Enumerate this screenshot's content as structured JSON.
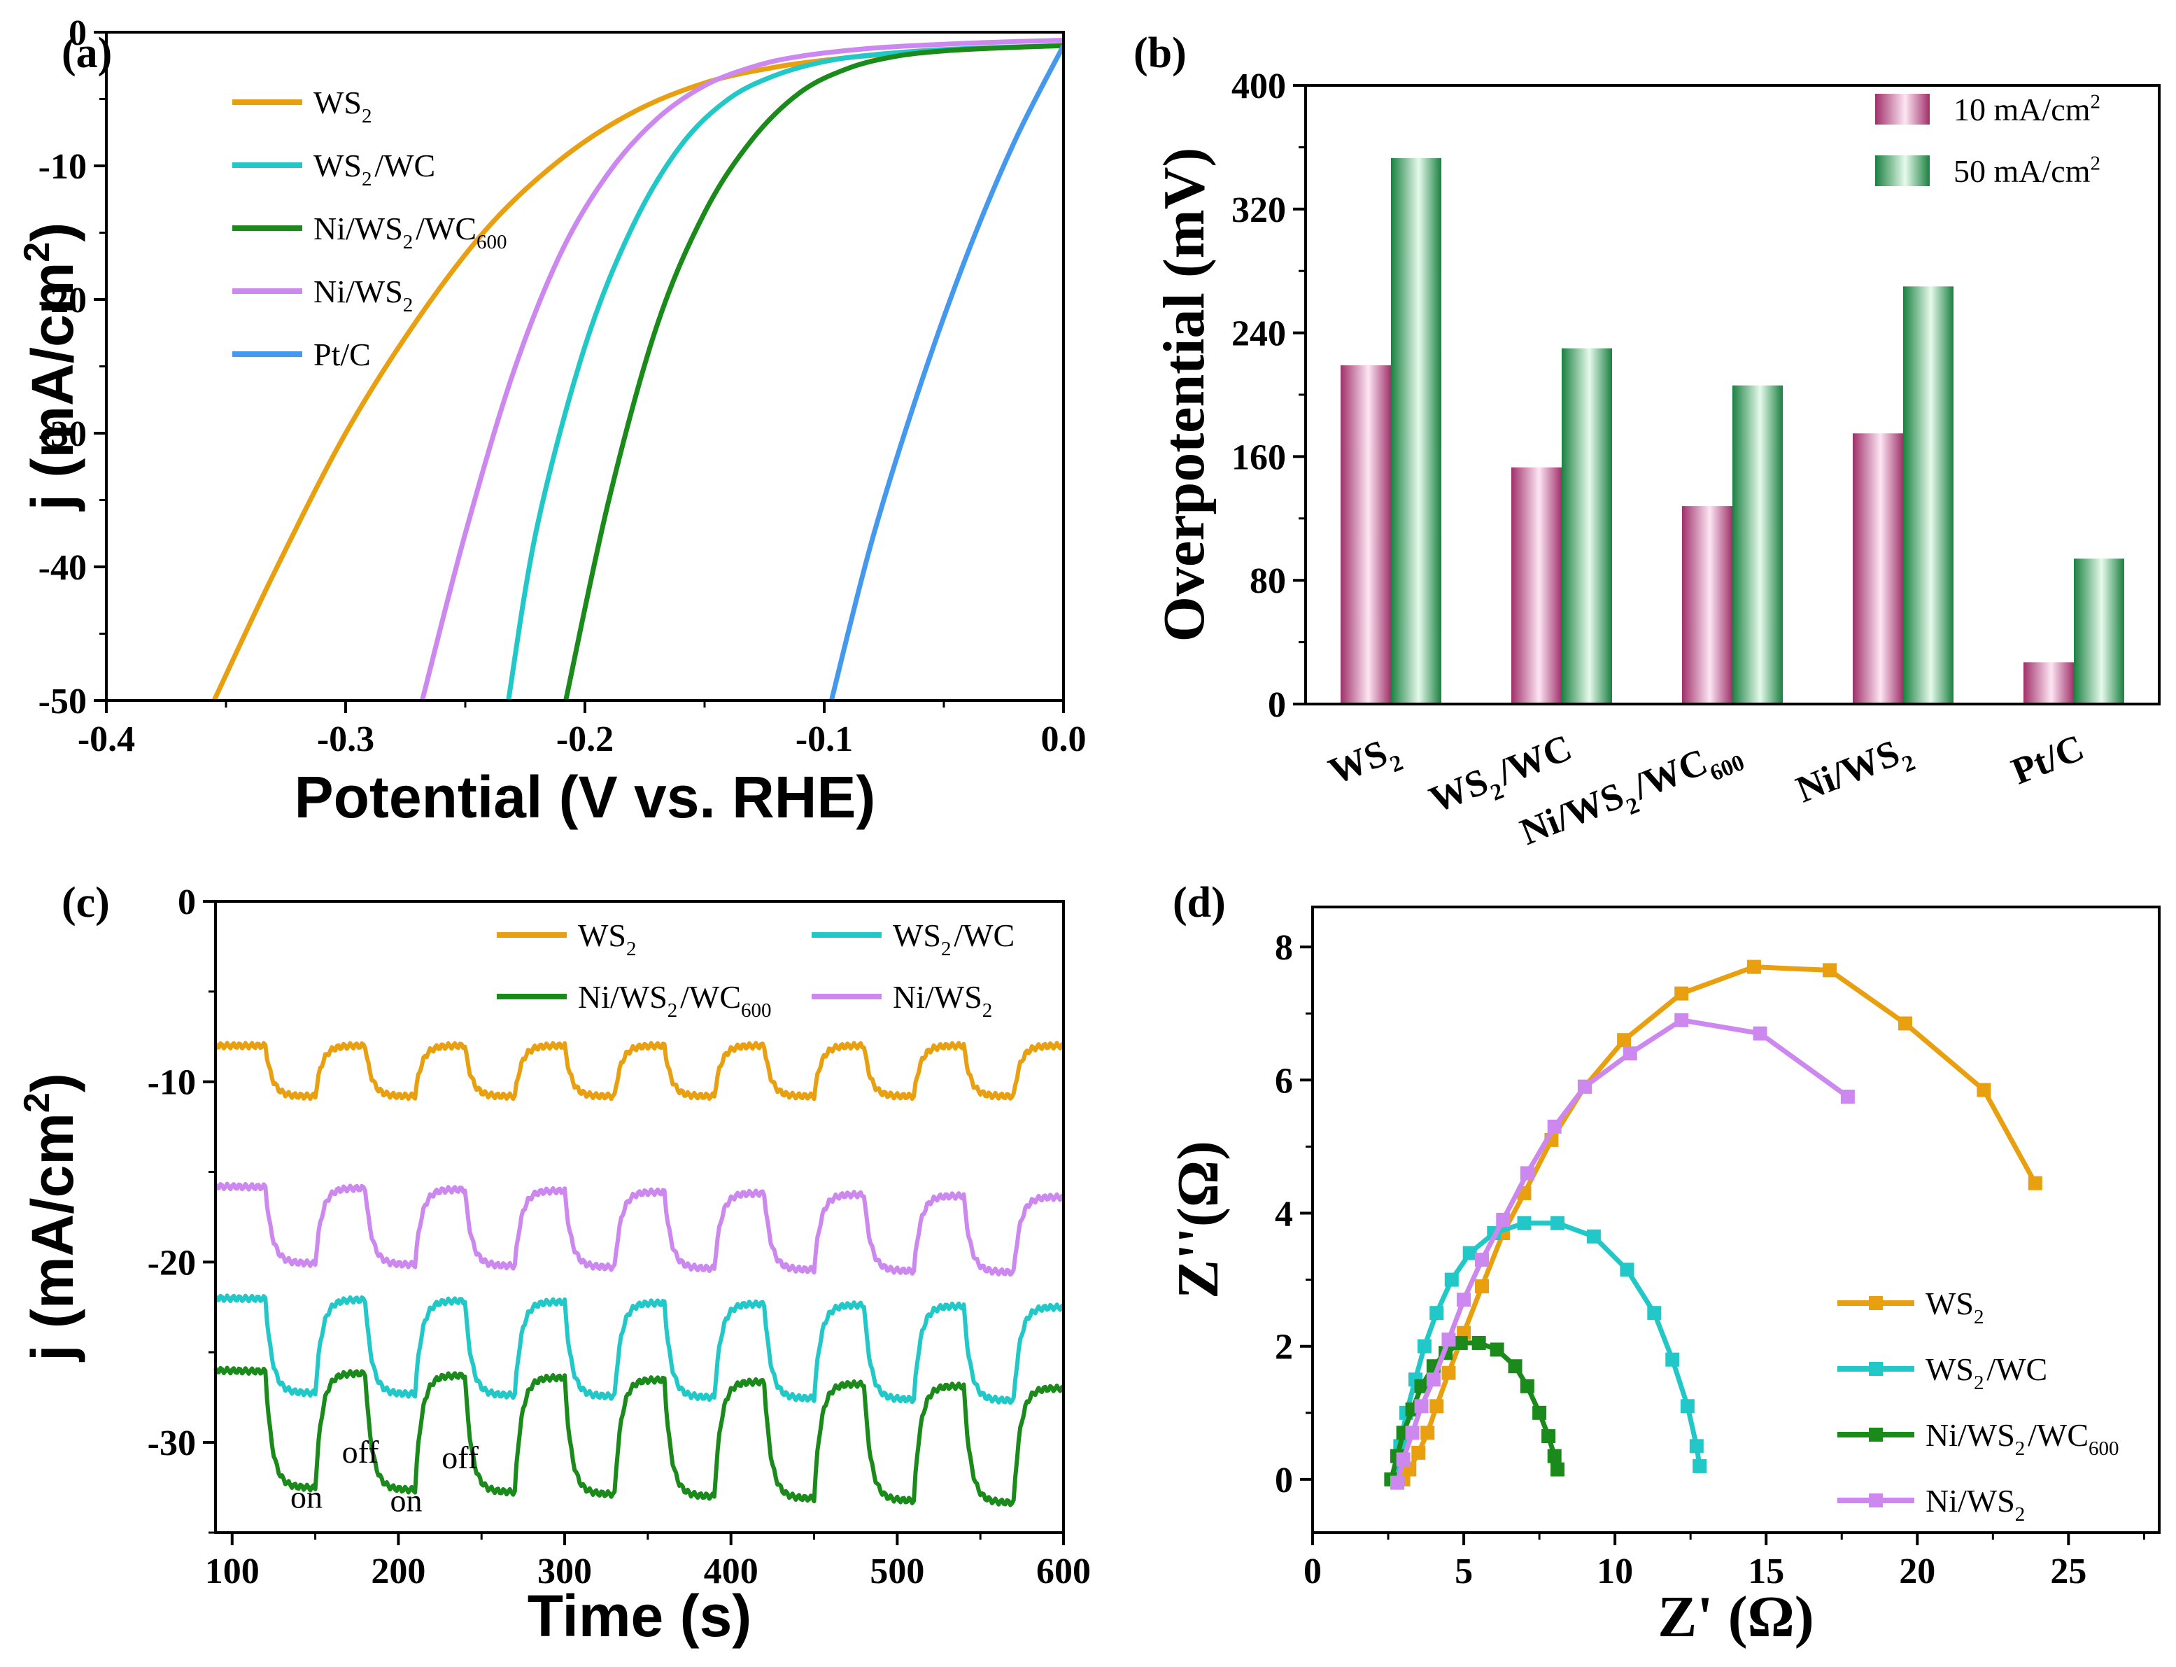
{
  "chart_data": [
    {
      "panel": "(a)",
      "type": "line",
      "xlabel": "Potential (V vs. RHE)",
      "ylabel": "j (mA/cm",
      "ylabel_sup": "2",
      "ylabel_end": ")",
      "xlim": [
        -0.4,
        0.0
      ],
      "ylim": [
        -50,
        0
      ],
      "xticks": [
        -0.4,
        -0.3,
        -0.2,
        -0.1,
        0.0
      ],
      "xtick_labels": [
        "-0.4",
        "-0.3",
        "-0.2",
        "-0.1",
        "0.0"
      ],
      "yticks": [
        0,
        -10,
        -20,
        -30,
        -40,
        -50
      ],
      "ytick_labels": [
        "0",
        "-10",
        "-20",
        "-30",
        "-40",
        "-50"
      ],
      "legend": [
        {
          "base": "WS",
          "sub": "2",
          "tail": "",
          "color": "#E8A010"
        },
        {
          "base": "WS",
          "sub": "2",
          "tail": "/WC",
          "color": "#22C8C8"
        },
        {
          "base": "Ni/WS",
          "sub": "2",
          "tail": "/WC",
          "sub2": "600",
          "color": "#1A8A1A"
        },
        {
          "base": "Ni/WS",
          "sub": "2",
          "tail": "",
          "color": "#CC88EE"
        },
        {
          "base": "Pt/C",
          "sub": "",
          "tail": "",
          "color": "#4499EE"
        }
      ],
      "series": [
        {
          "name": "WS2",
          "color": "#E8A010",
          "x": [
            -0.355,
            -0.33,
            -0.3,
            -0.27,
            -0.24,
            -0.21,
            -0.18,
            -0.15,
            -0.12,
            -0.09,
            -0.06,
            -0.03,
            0.0
          ],
          "y": [
            -50,
            -40.5,
            -30.0,
            -21.5,
            -14.5,
            -9.5,
            -6.0,
            -3.8,
            -2.6,
            -1.9,
            -1.5,
            -1.2,
            -1.0
          ]
        },
        {
          "name": "WS2/WC",
          "color": "#22C8C8",
          "x": [
            -0.232,
            -0.22,
            -0.2,
            -0.18,
            -0.16,
            -0.14,
            -0.12,
            -0.1,
            -0.08,
            -0.05,
            -0.02,
            0.0
          ],
          "y": [
            -50,
            -37.0,
            -23.5,
            -14.5,
            -8.5,
            -5.0,
            -3.2,
            -2.2,
            -1.7,
            -1.3,
            -1.1,
            -1.0
          ]
        },
        {
          "name": "Ni/WS2/WC600",
          "color": "#1A8A1A",
          "x": [
            -0.208,
            -0.19,
            -0.17,
            -0.15,
            -0.13,
            -0.11,
            -0.09,
            -0.07,
            -0.05,
            -0.03,
            0.0
          ],
          "y": [
            -50,
            -35.0,
            -22.0,
            -13.5,
            -8.0,
            -4.5,
            -2.7,
            -1.8,
            -1.4,
            -1.2,
            -1.0
          ]
        },
        {
          "name": "Ni/WS2",
          "color": "#CC88EE",
          "x": [
            -0.268,
            -0.25,
            -0.23,
            -0.21,
            -0.19,
            -0.17,
            -0.15,
            -0.13,
            -0.11,
            -0.08,
            -0.05,
            -0.02,
            0.0
          ],
          "y": [
            -50,
            -37.5,
            -25.5,
            -16.5,
            -10.5,
            -6.5,
            -4.0,
            -2.6,
            -1.8,
            -1.2,
            -0.9,
            -0.7,
            -0.6
          ]
        },
        {
          "name": "Pt/C",
          "color": "#4499EE",
          "x": [
            -0.097,
            -0.08,
            -0.06,
            -0.04,
            -0.02,
            0.0
          ],
          "y": [
            -50,
            -38.0,
            -26.5,
            -16.5,
            -8.0,
            -1.0
          ]
        }
      ]
    },
    {
      "panel": "(b)",
      "type": "bar",
      "ylabel": "Overpotential (mV)",
      "ylim": [
        0,
        400
      ],
      "yticks": [
        0,
        80,
        160,
        240,
        320,
        400
      ],
      "ytick_labels": [
        "0",
        "80",
        "160",
        "240",
        "320",
        "400"
      ],
      "categories": [
        {
          "base": "WS",
          "sub": "2",
          "tail": ""
        },
        {
          "base": "WS",
          "sub": "2",
          "tail": "/WC"
        },
        {
          "base": "Ni/WS",
          "sub": "2",
          "tail": "/WC",
          "sub2": "600"
        },
        {
          "base": "Ni/WS",
          "sub": "2",
          "tail": ""
        },
        {
          "base": "Pt/C",
          "sub": "",
          "tail": ""
        }
      ],
      "legend": [
        {
          "base": "10 mA/cm",
          "sup": "2",
          "color": "#A0306A"
        },
        {
          "base": "50 mA/cm",
          "sup": "2",
          "color": "#1A8040"
        }
      ],
      "series": [
        {
          "name": "10 mA/cm2",
          "values": [
            219,
            153,
            128,
            175,
            27
          ]
        },
        {
          "name": "50 mA/cm2",
          "values": [
            353,
            230,
            206,
            270,
            94
          ]
        }
      ]
    },
    {
      "panel": "(c)",
      "type": "line",
      "xlabel": "Time (s)",
      "ylabel": "j (mA/cm",
      "ylabel_sup": "2",
      "ylabel_end": ")",
      "xlim": [
        90,
        600
      ],
      "ylim": [
        -35,
        0
      ],
      "xticks": [
        100,
        200,
        300,
        400,
        500,
        600
      ],
      "xtick_labels": [
        "100",
        "200",
        "300",
        "400",
        "500",
        "600"
      ],
      "yticks": [
        0,
        -10,
        -20,
        -30
      ],
      "ytick_labels": [
        "0",
        "-10",
        "-20",
        "-30"
      ],
      "legend": [
        {
          "base": "WS",
          "sub": "2",
          "tail": "",
          "color": "#E8A010"
        },
        {
          "base": "WS",
          "sub": "2",
          "tail": "/WC",
          "color": "#22C8C8"
        },
        {
          "base": "Ni/WS",
          "sub": "2",
          "tail": "/WC",
          "sub2": "600",
          "color": "#1A8A1A"
        },
        {
          "base": "Ni/WS",
          "sub": "2",
          "tail": "",
          "color": "#CC88EE"
        }
      ],
      "annotations": [
        {
          "text": "on",
          "x": 135,
          "y": -33.0
        },
        {
          "text": "off",
          "x": 166,
          "y": -30.5
        },
        {
          "text": "on",
          "x": 195,
          "y": -33.2
        },
        {
          "text": "off",
          "x": 226,
          "y": -30.8
        }
      ],
      "light_on_period_s": 60,
      "series": [
        {
          "name": "WS2",
          "color": "#E8A010",
          "light": -8.0,
          "dark": -10.8,
          "drift": 0.0
        },
        {
          "name": "Ni/WS2",
          "color": "#CC88EE",
          "light": -15.8,
          "dark": -20.0,
          "drift": -0.6
        },
        {
          "name": "WS2/WC",
          "color": "#22C8C8",
          "light": -22.0,
          "dark": -27.2,
          "drift": -0.5
        },
        {
          "name": "Ni/WS2/WC600",
          "color": "#1A8A1A",
          "light": -26.0,
          "dark": -32.4,
          "drift": -1.0
        }
      ]
    },
    {
      "panel": "(d)",
      "type": "line",
      "xlabel": "Z' (Ω)",
      "ylabel": "Z''(Ω)",
      "xlim": [
        0,
        28
      ],
      "ylim": [
        -0.8,
        8.6
      ],
      "xticks": [
        0,
        5,
        10,
        15,
        20,
        25
      ],
      "xtick_labels": [
        "0",
        "5",
        "10",
        "15",
        "20",
        "25"
      ],
      "yticks": [
        0,
        2,
        4,
        6,
        8
      ],
      "ytick_labels": [
        "0",
        "2",
        "4",
        "6",
        "8"
      ],
      "legend": [
        {
          "base": "WS",
          "sub": "2",
          "tail": "",
          "color": "#E8A010"
        },
        {
          "base": "WS",
          "sub": "2",
          "tail": "/WC",
          "color": "#22C8C8"
        },
        {
          "base": "Ni/WS",
          "sub": "2",
          "tail": "/WC",
          "sub2": "600",
          "color": "#1A8A1A"
        },
        {
          "base": "Ni/WS",
          "sub": "2",
          "tail": "",
          "color": "#CC88EE"
        }
      ],
      "series": [
        {
          "name": "WS2",
          "color": "#E8A010",
          "x": [
            3.0,
            3.2,
            3.5,
            3.8,
            4.1,
            4.5,
            5.0,
            5.6,
            6.3,
            7.0,
            7.9,
            9.0,
            10.3,
            12.2,
            14.6,
            17.1,
            19.6,
            22.2,
            23.9
          ],
          "y": [
            0.0,
            0.15,
            0.4,
            0.7,
            1.1,
            1.6,
            2.2,
            2.9,
            3.7,
            4.3,
            5.1,
            5.9,
            6.6,
            7.3,
            7.7,
            7.65,
            6.85,
            5.85,
            4.45
          ]
        },
        {
          "name": "WS2/WC",
          "color": "#22C8C8",
          "x": [
            2.7,
            2.9,
            3.1,
            3.4,
            3.7,
            4.1,
            4.6,
            5.2,
            6.0,
            7.0,
            8.1,
            9.3,
            10.4,
            11.3,
            11.9,
            12.4,
            12.7,
            12.8
          ],
          "y": [
            0.0,
            0.5,
            1.0,
            1.5,
            2.0,
            2.5,
            3.0,
            3.4,
            3.7,
            3.85,
            3.85,
            3.65,
            3.15,
            2.5,
            1.8,
            1.1,
            0.5,
            0.2
          ]
        },
        {
          "name": "Ni/WS2/WC600",
          "color": "#1A8A1A",
          "x": [
            2.6,
            2.8,
            3.0,
            3.3,
            3.6,
            4.0,
            4.4,
            4.9,
            5.5,
            6.1,
            6.7,
            7.1,
            7.5,
            7.8,
            8.0,
            8.1
          ],
          "y": [
            0.0,
            0.35,
            0.7,
            1.05,
            1.4,
            1.7,
            1.9,
            2.05,
            2.05,
            1.95,
            1.7,
            1.4,
            1.0,
            0.65,
            0.35,
            0.15
          ]
        },
        {
          "name": "Ni/WS2",
          "color": "#CC88EE",
          "x": [
            2.8,
            3.0,
            3.3,
            3.6,
            4.0,
            4.5,
            5.0,
            5.6,
            6.3,
            7.1,
            8.0,
            9.0,
            10.5,
            12.2,
            14.8,
            17.7
          ],
          "y": [
            -0.05,
            0.3,
            0.7,
            1.1,
            1.5,
            2.1,
            2.7,
            3.3,
            3.9,
            4.6,
            5.3,
            5.9,
            6.4,
            6.9,
            6.7,
            5.75
          ]
        }
      ]
    }
  ]
}
